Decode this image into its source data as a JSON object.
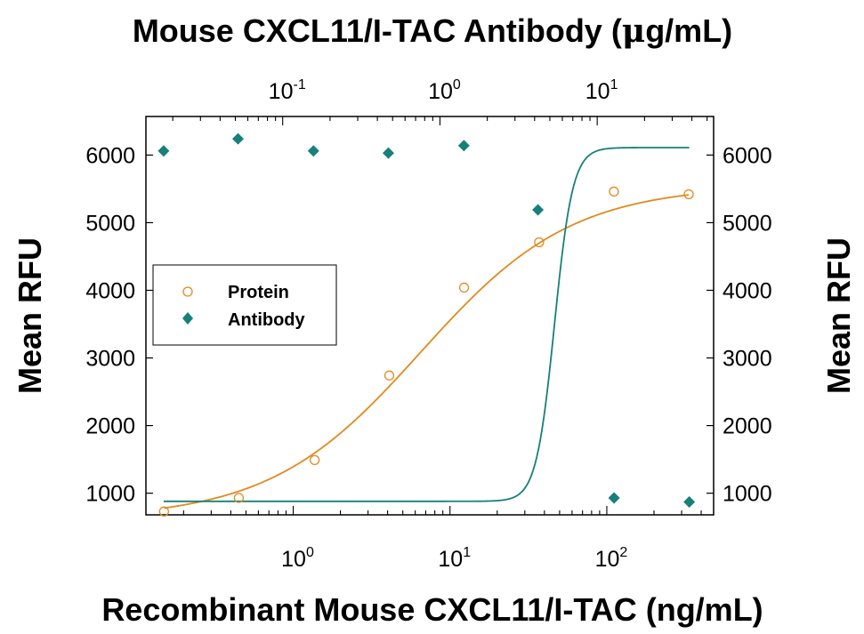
{
  "chart_data": {
    "type": "scatter",
    "title": "Mouse CXCL11/I-TAC Antibody (",
    "title_mu": "μ",
    "title_suffix": "g/mL)",
    "xlabel": "Recombinant Mouse CXCL11/I-TAC (ng/mL)",
    "ylabel_left": "Mean RFU",
    "ylabel_right": "Mean RFU",
    "x_scale": "log",
    "x_range": [
      0.115,
      480
    ],
    "y_range": [
      680,
      6570
    ],
    "y_ticks": [
      1000,
      2000,
      3000,
      4000,
      5000,
      6000
    ],
    "y_tick_labels": [
      "1000",
      "2000",
      "3000",
      "4000",
      "5000",
      "6000"
    ],
    "x_bottom_ticks": [
      {
        "value": 1,
        "base": "10",
        "exp": "0"
      },
      {
        "value": 10,
        "base": "10",
        "exp": "1"
      },
      {
        "value": 100,
        "base": "10",
        "exp": "2"
      }
    ],
    "x_top_scale": "log",
    "x_top_range": [
      0.0135,
      55
    ],
    "x_top_ticks": [
      {
        "value": 0.1,
        "base": "10",
        "exp": "-1"
      },
      {
        "value": 1,
        "base": "10",
        "exp": "0"
      },
      {
        "value": 10,
        "base": "10",
        "exp": "1"
      }
    ],
    "legend_position": "left-middle",
    "series": [
      {
        "name": "Protein",
        "axis": "bottom",
        "marker": "open-circle",
        "color": "#E08A1E",
        "x": [
          0.15,
          0.45,
          1.37,
          4.1,
          12.3,
          37,
          111,
          333
        ],
        "y": [
          730,
          930,
          1490,
          2740,
          4040,
          4710,
          5460,
          5420
        ],
        "fit": {
          "model": "4PL",
          "bottom": 620,
          "top": 5550,
          "ec50": 6.5,
          "hill": 0.9
        }
      },
      {
        "name": "Antibody",
        "axis": "top",
        "marker": "filled-diamond",
        "color": "#17807A",
        "x": [
          0.0175,
          0.052,
          0.157,
          0.47,
          1.42,
          4.2,
          12.8,
          38.5
        ],
        "y": [
          6060,
          6240,
          6060,
          6030,
          6140,
          5190,
          930,
          870
        ],
        "fit": {
          "model": "4PL",
          "bottom": 880,
          "top": 6110,
          "ec50": 5.35,
          "hill": 7.5
        }
      }
    ]
  }
}
